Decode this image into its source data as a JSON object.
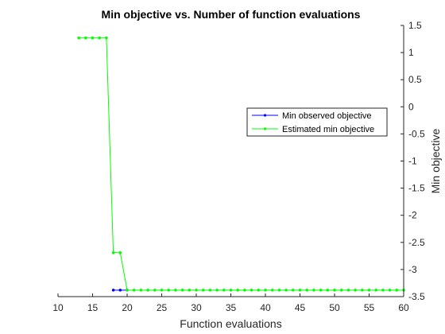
{
  "chart_data": {
    "type": "line",
    "title": "Min objective vs. Number of function evaluations",
    "xlabel": "Function evaluations",
    "ylabel": "Min objective",
    "xlim": [
      10,
      60
    ],
    "ylim": [
      -3.5,
      1.5
    ],
    "xticks": [
      10,
      15,
      20,
      25,
      30,
      35,
      40,
      45,
      50,
      55,
      60
    ],
    "yticks": [
      1.5,
      1,
      0.5,
      0,
      -0.5,
      -1,
      -1.5,
      -2,
      -2.5,
      -3,
      -3.5
    ],
    "xtick_labels": [
      "10",
      "15",
      "20",
      "25",
      "30",
      "35",
      "40",
      "45",
      "50",
      "55",
      "60"
    ],
    "ytick_labels": [
      "1.5",
      "1",
      "0.5",
      "0",
      "-0.5",
      "-1",
      "-1.5",
      "-2",
      "-2.5",
      "-3",
      "-3.5"
    ],
    "y_axis_side": "right",
    "grid": false,
    "legend_placement": "right",
    "series": [
      {
        "name": "Min observed objective",
        "color": "#0000ff",
        "x": [
          18,
          19,
          20
        ],
        "y": [
          -3.38,
          -3.38,
          -3.38
        ]
      },
      {
        "name": "Estimated min objective",
        "color": "#00ff00",
        "x": [
          13,
          14,
          15,
          16,
          17,
          18,
          19,
          20,
          21,
          22,
          23,
          24,
          25,
          26,
          27,
          28,
          29,
          30,
          31,
          32,
          33,
          34,
          35,
          36,
          37,
          38,
          39,
          40,
          41,
          42,
          43,
          44,
          45,
          46,
          47,
          48,
          49,
          50,
          51,
          52,
          53,
          54,
          55,
          56,
          57,
          58,
          59,
          60
        ],
        "y": [
          1.27,
          1.27,
          1.27,
          1.27,
          1.27,
          -2.69,
          -2.69,
          -3.38,
          -3.38,
          -3.38,
          -3.38,
          -3.38,
          -3.38,
          -3.38,
          -3.38,
          -3.38,
          -3.38,
          -3.38,
          -3.38,
          -3.38,
          -3.38,
          -3.38,
          -3.38,
          -3.38,
          -3.38,
          -3.38,
          -3.38,
          -3.38,
          -3.38,
          -3.38,
          -3.38,
          -3.38,
          -3.38,
          -3.38,
          -3.38,
          -3.38,
          -3.38,
          -3.38,
          -3.38,
          -3.38,
          -3.38,
          -3.38,
          -3.38,
          -3.38,
          -3.38,
          -3.38,
          -3.38,
          -3.38
        ]
      }
    ]
  }
}
